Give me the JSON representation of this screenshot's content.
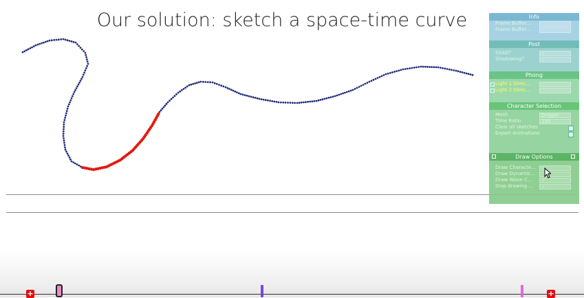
{
  "title": "Our solution: sketch a space-time curve",
  "curve": {
    "blue_color": "#1f2a7a",
    "red_color": "#e01a10",
    "blue_points_1": [
      [
        33,
        76
      ],
      [
        52,
        66
      ],
      [
        72,
        59
      ],
      [
        92,
        57
      ],
      [
        110,
        62
      ],
      [
        124,
        77
      ],
      [
        128,
        93
      ],
      [
        120,
        112
      ],
      [
        108,
        134
      ],
      [
        99,
        155
      ],
      [
        93,
        178
      ],
      [
        92,
        198
      ],
      [
        95,
        218
      ],
      [
        104,
        235
      ],
      [
        120,
        244
      ]
    ],
    "red_points": [
      [
        120,
        244
      ],
      [
        136,
        247
      ],
      [
        155,
        243
      ],
      [
        175,
        233
      ],
      [
        193,
        219
      ],
      [
        208,
        202
      ],
      [
        221,
        183
      ],
      [
        232,
        163
      ]
    ],
    "blue_points_2": [
      [
        232,
        163
      ],
      [
        244,
        149
      ],
      [
        259,
        135
      ],
      [
        275,
        124
      ],
      [
        292,
        119
      ],
      [
        309,
        120
      ],
      [
        328,
        127
      ],
      [
        350,
        137
      ],
      [
        377,
        144
      ],
      [
        405,
        149
      ],
      [
        432,
        150
      ],
      [
        460,
        147
      ],
      [
        487,
        140
      ],
      [
        513,
        131
      ],
      [
        537,
        119
      ],
      [
        561,
        108
      ],
      [
        586,
        101
      ],
      [
        612,
        97
      ],
      [
        637,
        98
      ],
      [
        663,
        103
      ],
      [
        690,
        110
      ]
    ]
  },
  "panels": {
    "info": {
      "title": "Info",
      "rows": [
        "Frame Buffer...",
        "Frame Buffer..."
      ]
    },
    "post": {
      "title": "Post",
      "rows": [
        "SSAO?",
        "Shadowing?"
      ]
    },
    "phong": {
      "title": "Phong",
      "rows": [
        "Light 1 Direc...",
        "Light 2 Direc..."
      ]
    },
    "char": {
      "title": "Character Selection",
      "rows": [
        "Mesh",
        "Time Ratio",
        "Clear all sketches",
        "Export Animations"
      ],
      "mesh_value": "Dragon",
      "time_ratio_value": "100"
    },
    "draw": {
      "title": "Draw Options",
      "rows": [
        "Draw Characte...",
        "Draw Dynamic...",
        "Draw Wave C...",
        "Stop drawing ..."
      ]
    }
  },
  "timeline": {
    "cross_symbol": "+",
    "slider_color": "#e88acb",
    "tick_colors": [
      "#7a44d8",
      "#e06ad8"
    ]
  }
}
